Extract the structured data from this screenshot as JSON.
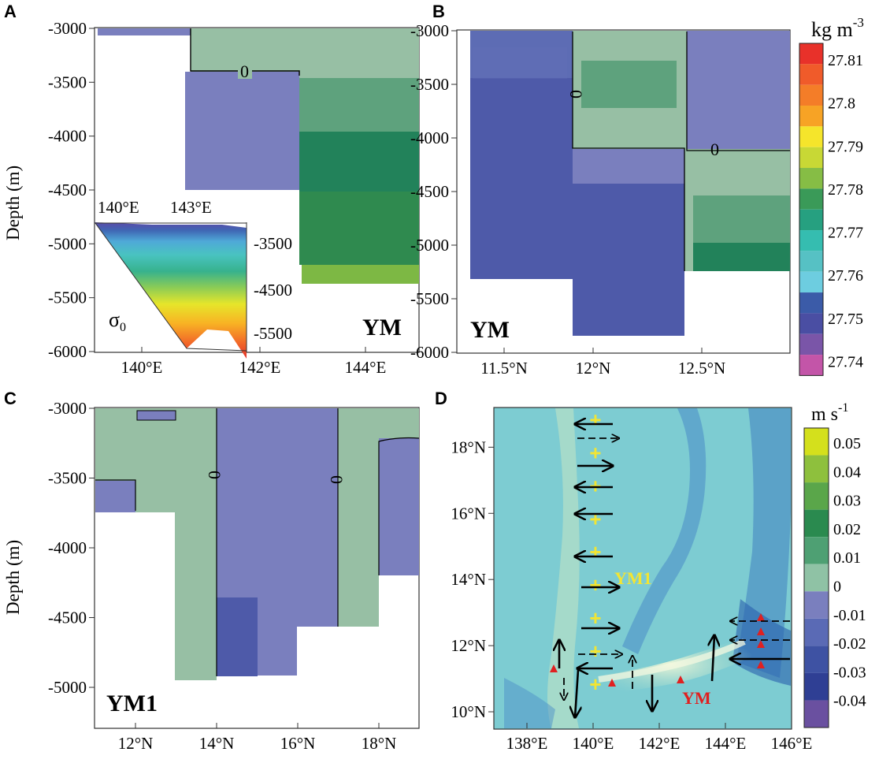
{
  "colors": {
    "m004": "#7c51a8",
    "m003": "#7374bc",
    "m002": "#4e5aa9",
    "m001": "#5d6cb5",
    "zero": "#7a7fbe",
    "p001": "#97bfa4",
    "p002": "#5ea27d",
    "p003": "#22825a",
    "p004": "#3a9a58",
    "p005": "#7db844",
    "map_bg": "#7dccd2",
    "ym_red": "#e02020",
    "ym1_yellow": "#f2e533"
  },
  "chart_data": [
    {
      "panel": "A",
      "type": "contour-section",
      "title": "YM",
      "xlabel": "",
      "ylabel": "Depth (m)",
      "x_ticks": [
        "140°E",
        "142°E",
        "144°E"
      ],
      "xlim": [
        138.7,
        145.4
      ],
      "y_ticks": [
        "-3000",
        "-3500",
        "-4000",
        "-4500",
        "-5000",
        "-5500",
        "-6000"
      ],
      "ylim": [
        -6000,
        -3000
      ],
      "contour_label": "0",
      "fill_regions": [
        {
          "x": [
            138.7,
            140.3
          ],
          "depth": [
            -3000,
            -3080
          ],
          "value": 0
        },
        {
          "x": [
            140.35,
            142.65
          ],
          "depth": [
            -3000,
            -3450
          ],
          "value": 0.01
        },
        {
          "x": [
            140.35,
            142.65
          ],
          "depth": [
            -3450,
            -4500
          ],
          "value": 0
        },
        {
          "x": [
            142.65,
            145.4
          ],
          "depth": [
            -3000,
            -3500
          ],
          "value": 0.01
        },
        {
          "x": [
            142.65,
            145.4
          ],
          "depth": [
            -3500,
            -3960
          ],
          "value": 0.02
        },
        {
          "x": [
            142.65,
            145.4
          ],
          "depth": [
            -3960,
            -4500
          ],
          "value": 0.03
        },
        {
          "x": [
            142.65,
            145.4
          ],
          "depth": [
            -4500,
            -5150
          ],
          "value": 0.03
        },
        {
          "x": [
            142.65,
            145.4
          ],
          "depth": [
            -5150,
            -5400
          ],
          "value": 0.05
        }
      ],
      "inset": {
        "label": "σ",
        "label_sub": "0",
        "x_ticks": [
          "140°E",
          "143°E"
        ],
        "y_ticks": [
          "-3500",
          "-4500",
          "-5500"
        ],
        "levels": [
          "27.74",
          "27.75",
          "27.755",
          "27.76",
          "27.765",
          "27.77",
          "27.775",
          "27.78",
          "27.785",
          "27.79",
          "27.795",
          "27.8",
          "27.805",
          "27.81"
        ]
      }
    },
    {
      "panel": "B",
      "type": "contour-section",
      "title": "YM",
      "x_ticks": [
        "11.5°N",
        "12°N",
        "12.5°N"
      ],
      "xlim": [
        11.4,
        12.87
      ],
      "y_ticks": [
        "-3000",
        "-3500",
        "-4000",
        "-4500",
        "-5000",
        "-5500",
        "-6000"
      ],
      "ylim": [
        -6000,
        -3000
      ],
      "contour_labels": [
        "0",
        "0"
      ],
      "colorbar": {
        "unit": "kg m",
        "unit_exp": "-3",
        "ticks": [
          "27.81",
          "27.8",
          "27.79",
          "27.78",
          "27.77",
          "27.76",
          "27.75",
          "27.74"
        ],
        "colors": [
          "#e8312a",
          "#f05b2a",
          "#f47d28",
          "#f7a325",
          "#f5e52b",
          "#c8d835",
          "#86bd45",
          "#3a9a58",
          "#26a080",
          "#35bdb0",
          "#56c1c4",
          "#6dcde0",
          "#3b5ba8",
          "#4a4ea3",
          "#7a55a8",
          "#c355a8"
        ]
      }
    },
    {
      "panel": "C",
      "type": "contour-section",
      "title": "YM1",
      "ylabel": "Depth (m)",
      "x_ticks": [
        "12°N",
        "14°N",
        "16°N",
        "18°N"
      ],
      "xlim": [
        11,
        19
      ],
      "y_ticks": [
        "-3000",
        "-3500",
        "-4000",
        "-4500",
        "-5000"
      ],
      "ylim": [
        -5200,
        -3000
      ],
      "contour_labels": [
        "0",
        "0"
      ]
    },
    {
      "panel": "D",
      "type": "map",
      "title": "YM1",
      "title2": "YM",
      "x_ticks": [
        "138°E",
        "140°E",
        "142°E",
        "144°E",
        "146°E"
      ],
      "xlim": [
        137,
        146
      ],
      "y_ticks": [
        "18°N",
        "16°N",
        "14°N",
        "12°N",
        "10°N"
      ],
      "ylim": [
        9.5,
        19.2
      ],
      "ym1_stations_lat": [
        19,
        18,
        17,
        16,
        15,
        14,
        13,
        12,
        11
      ],
      "colorbar": {
        "unit": "m s",
        "unit_exp": "-1",
        "ticks": [
          "0.05",
          "0.04",
          "0.03",
          "0.02",
          "0.01",
          "0",
          "-0.01",
          "-0.02",
          "-0.03",
          "-0.04"
        ],
        "colors": [
          "#d4e01c",
          "#8ec03d",
          "#5aa64a",
          "#2a8a4f",
          "#4ea073",
          "#8fc2a5",
          "#7a7fbe",
          "#5a6ab5",
          "#3e52a3",
          "#2f3f94",
          "#6a50a0"
        ]
      }
    }
  ],
  "panel_labels": {
    "a": "A",
    "b": "B",
    "c": "C",
    "d": "D"
  }
}
